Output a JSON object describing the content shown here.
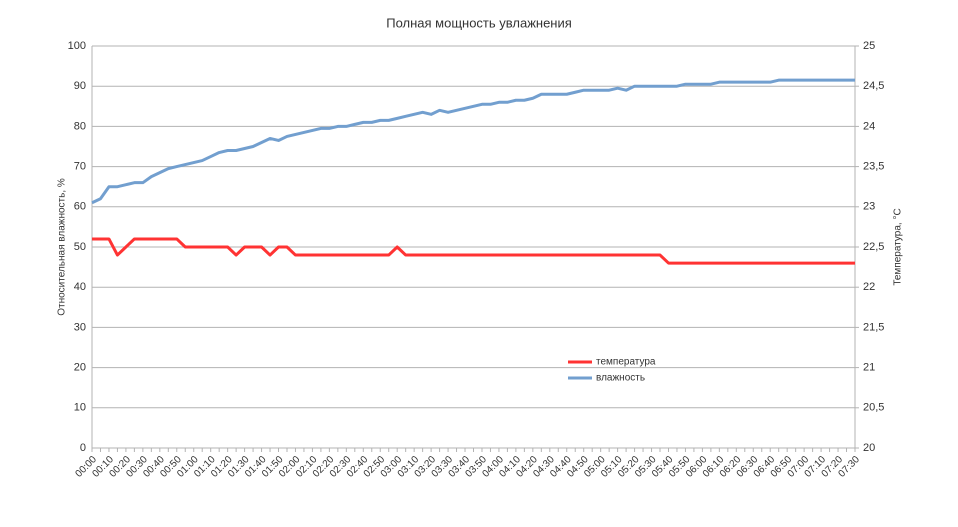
{
  "chart_data": {
    "type": "line",
    "title": "Полная мощность увлажнения",
    "y_label": "Относительная влажность, %",
    "y2_label": "Температура, °С",
    "categories": [
      "00:00",
      null,
      "00:10",
      null,
      "00:20",
      null,
      "00:30",
      null,
      "00:40",
      null,
      "00:50",
      null,
      "01:00",
      null,
      "01:10",
      null,
      "01:20",
      null,
      "01:30",
      null,
      "01:40",
      null,
      "01:50",
      null,
      "02:00",
      null,
      "02:10",
      null,
      "02:20",
      null,
      "02:30",
      null,
      "02:40",
      null,
      "02:50",
      null,
      "03:00",
      null,
      "03:10",
      null,
      "03:20",
      null,
      "03:30",
      null,
      "03:40",
      null,
      "03:50",
      null,
      "04:00",
      null,
      "04:10",
      null,
      "04:20",
      null,
      "04:30",
      null,
      "04:40",
      null,
      "04:50",
      null,
      "05:00",
      null,
      "05:10",
      null,
      "05:20",
      null,
      "05:30",
      null,
      "05:40",
      null,
      "05:50",
      null,
      "06:00",
      null,
      "06:10",
      null,
      "06:20",
      null,
      "06:30",
      null,
      "06:40",
      null,
      "06:50",
      null,
      "07:00",
      null,
      "07:10",
      null,
      "07:20",
      null,
      "07:30"
    ],
    "series": [
      {
        "name": "температура",
        "color": "#ff3333",
        "axis": "y2",
        "values": [
          22.6,
          22.6,
          22.6,
          22.4,
          22.5,
          22.6,
          22.6,
          22.6,
          22.6,
          22.6,
          22.6,
          22.5,
          22.5,
          22.5,
          22.5,
          22.5,
          22.5,
          22.4,
          22.5,
          22.5,
          22.5,
          22.4,
          22.5,
          22.5,
          22.4,
          22.4,
          22.4,
          22.4,
          22.4,
          22.4,
          22.4,
          22.4,
          22.4,
          22.4,
          22.4,
          22.4,
          22.5,
          22.4,
          22.4,
          22.4,
          22.4,
          22.4,
          22.4,
          22.4,
          22.4,
          22.4,
          22.4,
          22.4,
          22.4,
          22.4,
          22.4,
          22.4,
          22.4,
          22.4,
          22.4,
          22.4,
          22.4,
          22.4,
          22.4,
          22.4,
          22.4,
          22.4,
          22.4,
          22.4,
          22.4,
          22.4,
          22.4,
          22.4,
          22.3,
          22.3,
          22.3,
          22.3,
          22.3,
          22.3,
          22.3,
          22.3,
          22.3,
          22.3,
          22.3,
          22.3,
          22.3,
          22.3,
          22.3,
          22.3,
          22.3,
          22.3,
          22.3,
          22.3,
          22.3,
          22.3,
          22.3
        ]
      },
      {
        "name": "влажность",
        "color": "#729fcf",
        "values": [
          61,
          62,
          65,
          65,
          65.5,
          66,
          66,
          67.5,
          68.5,
          69.5,
          70,
          70.5,
          71,
          71.5,
          72.5,
          73.5,
          74,
          74,
          74.5,
          75,
          76,
          77,
          76.5,
          77.5,
          78,
          78.5,
          79,
          79.5,
          79.5,
          80,
          80,
          80.5,
          81,
          81,
          81.5,
          81.5,
          82,
          82.5,
          83,
          83.5,
          83,
          84,
          83.5,
          84,
          84.5,
          85,
          85.5,
          85.5,
          86,
          86,
          86.5,
          86.5,
          87,
          88,
          88,
          88,
          88,
          88.5,
          89,
          89,
          89,
          89,
          89.5,
          89,
          90,
          90,
          90,
          90,
          90,
          90,
          90.5,
          90.5,
          90.5,
          90.5,
          91,
          91,
          91,
          91,
          91,
          91,
          91,
          91.5,
          91.5,
          91.5,
          91.5,
          91.5,
          91.5,
          91.5,
          91.5,
          91.5,
          91.5
        ]
      }
    ],
    "ylim": [
      0,
      100
    ],
    "yticks": [
      0,
      10,
      20,
      30,
      40,
      50,
      60,
      70,
      80,
      90,
      100
    ],
    "y2lim": [
      20,
      25
    ],
    "y2ticks": [
      20,
      {
        "value": 20.5,
        "label": "20,5"
      },
      21,
      {
        "value": 21.5,
        "label": "21,5"
      },
      22,
      {
        "value": 22.5,
        "label": "22,5"
      },
      23,
      {
        "value": 23.5,
        "label": "23,5"
      },
      24,
      {
        "value": 24.5,
        "label": "24,5"
      },
      25
    ],
    "grid": true
  }
}
